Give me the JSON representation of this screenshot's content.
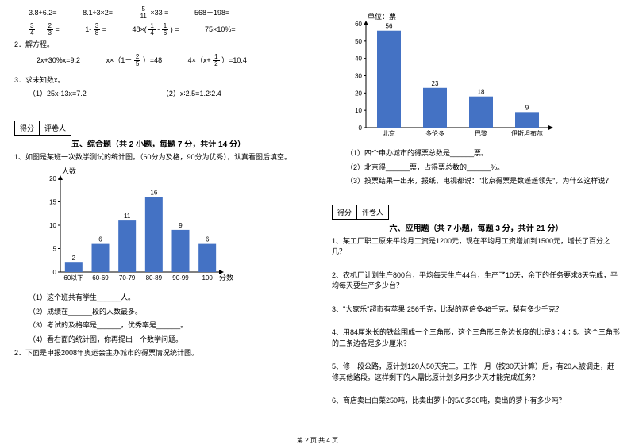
{
  "left": {
    "calc_row1": [
      "3.8+6.2=",
      "8.1÷3×2=",
      "×33 =",
      "568－198="
    ],
    "frac1": {
      "n": "5",
      "d": "11"
    },
    "calc_row2_a": {
      "n": "3",
      "d": "4"
    },
    "calc_row2_b": {
      "n": "2",
      "d": "3"
    },
    "calc_row2_c": "－",
    "calc_row2_d": "=",
    "calc_row2_e": {
      "n": "3",
      "d": "8"
    },
    "calc_row2_f": "1-",
    "calc_row2_g": "=",
    "calc_row2_h": "48×(",
    "calc_row2_i": {
      "n": "1",
      "d": "4"
    },
    "calc_row2_j": "-",
    "calc_row2_k": {
      "n": "1",
      "d": "6"
    },
    "calc_row2_l": ") =",
    "calc_row2_m": "75×10%=",
    "q2": "2．解方程。",
    "eq_row": "2x+30%x=9.2",
    "eq_row_b": "x×（1－",
    "eq_row_c": {
      "n": "2",
      "d": "5"
    },
    "eq_row_d": "）=48",
    "eq_row_e": "4×（x+",
    "eq_row_f": {
      "n": "1",
      "d": "2"
    },
    "eq_row_g": "）=10.4",
    "q3": "3．求未知数x。",
    "q3a": "（1）25x-13x=7.2",
    "q3b": "（2）x∶2.5=1.2∶2.4",
    "score_labels": [
      "得分",
      "评卷人"
    ],
    "section5": "五、综合题（共 2 小题，每题 7 分，共计 14 分）",
    "s5_q1": "1、如图是某班一次数学测试的统计图。（60分为及格，90分为优秀），认真看图后填空。",
    "chart1": {
      "y_title": "人数",
      "x_title": "分数",
      "categories": [
        "60以下",
        "60-69",
        "70-79",
        "80-89",
        "90-99",
        "100"
      ],
      "values": [
        2,
        6,
        11,
        16,
        9,
        6
      ],
      "ymax": 20,
      "ytick": 5,
      "bar_color": "#4472c4",
      "axis_color": "#000000"
    },
    "s5_q1_sub": [
      "（1）这个班共有学生______人。",
      "（2）成绩在______段的人数最多。",
      "（3）考试的及格率是______，优秀率是______。",
      "（4）看右面的统计图，你再提出一个数学问题。"
    ],
    "s5_q2": "2．下面是申报2008年奥运会主办城市的得票情况统计图。"
  },
  "right": {
    "chart2": {
      "y_title": "单位：票",
      "categories": [
        "北京",
        "多伦多",
        "巴黎",
        "伊斯坦布尔"
      ],
      "values": [
        56,
        23,
        18,
        9
      ],
      "ymax": 60,
      "ytick": 10,
      "bar_color": "#4472c4",
      "axis_color": "#000000"
    },
    "c2_sub": [
      "（1）四个申办城市的得票总数是______票。",
      "（2）北京得______票，占得票总数的______%。",
      "（3）投票结果一出来，报纸、电视都说：\"北京得票是数遥遥领先\"，为什么这样说？"
    ],
    "score_labels": [
      "得分",
      "评卷人"
    ],
    "section6": "六、应用题（共 7 小题，每题 3 分，共计 21 分）",
    "s6": [
      "1、某工厂职工原来平均月工资是1200元，现在平均月工资增加到1500元，增长了百分之几？",
      "2、农机厂计划生产800台，平均每天生产44台，生产了10天，余下的任务要求8天完成，平均每天要生产多少台？",
      "3、\"大家乐\"超市有苹果 256千克，比梨的两倍多48千克，梨有多少千克？",
      "4、用84厘米长的铁丝围成一个三角形，这个三角形三条边长度的比是3∶4∶5。这个三角形的三条边各是多少厘米？",
      "5、修一段公路，原计划120人50天完工。工作一月（按30天计算）后，有20人被调走，赶修其他路段。这样剩下的人需比原计划多用多少天才能完成任务？",
      "6、商店卖出白菜250吨，比卖出萝卜的5/6多30吨，卖出的萝卜有多少吨？"
    ]
  },
  "footer": "第 2 页 共 4 页"
}
